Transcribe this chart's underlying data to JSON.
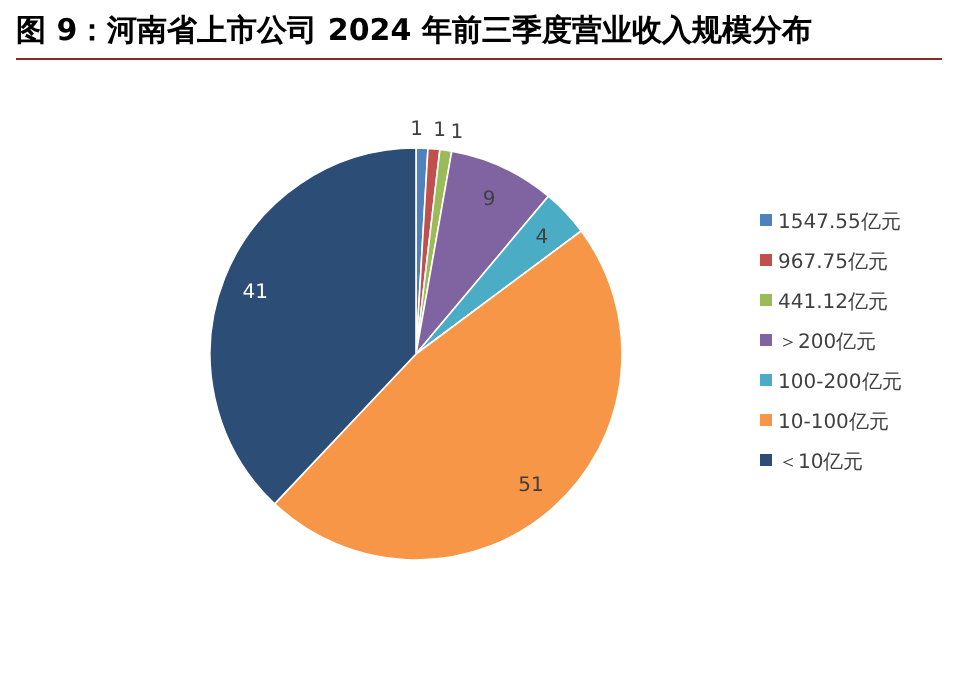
{
  "chart_data": {
    "type": "pie",
    "title": "图 9：河南省上市公司 2024 年前三季度营业收入规模分布",
    "categories": [
      "1547.55亿元",
      "967.75亿元",
      "441.12亿元",
      "＞200亿元",
      "100-200亿元",
      "10-100亿元",
      "＜10亿元"
    ],
    "values": [
      1,
      1,
      1,
      9,
      4,
      51,
      41
    ],
    "colors": [
      "#4f81bd",
      "#c0504d",
      "#9bbb59",
      "#8064a2",
      "#4bacc6",
      "#f79646",
      "#2c4d75"
    ],
    "data_labels": true,
    "legend": "right"
  }
}
